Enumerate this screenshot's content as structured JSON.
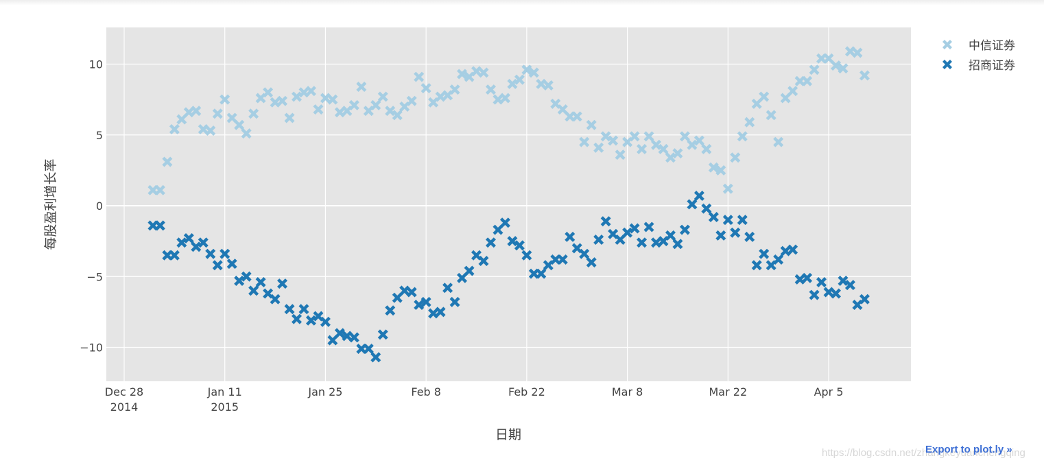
{
  "chart_data": {
    "type": "scatter",
    "title": "",
    "xlabel": "日期",
    "ylabel": "每股盈利增长率",
    "x_start": "2015-01-01",
    "x_step_days": 1,
    "x_tick_labels": [
      {
        "label": "Dec 28",
        "sub": "2014",
        "date": "2014-12-28"
      },
      {
        "label": "Jan 11",
        "sub": "2015",
        "date": "2015-01-11"
      },
      {
        "label": "Jan 25",
        "sub": "",
        "date": "2015-01-25"
      },
      {
        "label": "Feb 8",
        "sub": "",
        "date": "2015-02-08"
      },
      {
        "label": "Feb 22",
        "sub": "",
        "date": "2015-02-22"
      },
      {
        "label": "Mar 8",
        "sub": "",
        "date": "2015-03-08"
      },
      {
        "label": "Mar 22",
        "sub": "",
        "date": "2015-03-22"
      },
      {
        "label": "Apr 5",
        "sub": "",
        "date": "2015-04-05"
      }
    ],
    "y_ticks": [
      10,
      5,
      0,
      -5,
      -10
    ],
    "y_tick_labels": [
      "10",
      "5",
      "0",
      "−5",
      "−10"
    ],
    "ylim": [
      -12.4,
      12.6
    ],
    "xlim": [
      "2014-12-25",
      "2015-04-24"
    ],
    "grid": true,
    "legend_position": "top-right",
    "series": [
      {
        "name": "中信证券",
        "color": "#a6cee3",
        "marker": "x",
        "values": [
          1.1,
          1.1,
          3.1,
          5.4,
          6.1,
          6.6,
          6.7,
          5.4,
          5.3,
          6.5,
          7.5,
          6.2,
          5.7,
          5.1,
          6.5,
          7.6,
          8.0,
          7.3,
          7.4,
          6.2,
          7.7,
          8.0,
          8.1,
          6.8,
          7.6,
          7.5,
          6.6,
          6.7,
          7.1,
          8.4,
          6.7,
          7.1,
          7.7,
          6.7,
          6.4,
          7.0,
          7.4,
          9.1,
          8.3,
          7.3,
          7.7,
          7.8,
          8.2,
          9.3,
          9.1,
          9.5,
          9.4,
          8.2,
          7.5,
          7.6,
          8.6,
          8.9,
          9.6,
          9.4,
          8.6,
          8.5,
          7.2,
          6.8,
          6.3,
          6.3,
          4.5,
          5.7,
          4.1,
          4.9,
          4.6,
          3.6,
          4.5,
          4.9,
          4.0,
          4.9,
          4.3,
          4.0,
          3.4,
          3.7,
          4.9,
          4.3,
          4.6,
          4.0,
          2.7,
          2.5,
          1.2,
          3.4,
          4.9,
          5.9,
          7.2,
          7.7,
          6.4,
          4.5,
          7.6,
          8.1,
          8.8,
          8.8,
          9.6,
          10.4,
          10.4,
          9.9,
          9.7,
          10.9,
          10.8,
          9.2
        ]
      },
      {
        "name": "招商证券",
        "color": "#1f78b4",
        "marker": "x",
        "values": [
          -1.4,
          -1.4,
          -3.5,
          -3.5,
          -2.6,
          -2.3,
          -2.9,
          -2.6,
          -3.4,
          -4.2,
          -3.4,
          -4.1,
          -5.3,
          -5.0,
          -6.0,
          -5.4,
          -6.2,
          -6.6,
          -5.5,
          -7.3,
          -8.0,
          -7.3,
          -8.1,
          -7.8,
          -8.2,
          -9.5,
          -9.0,
          -9.2,
          -9.3,
          -10.1,
          -10.1,
          -10.7,
          -9.1,
          -7.4,
          -6.5,
          -6.0,
          -6.1,
          -7.0,
          -6.8,
          -7.6,
          -7.5,
          -5.8,
          -6.8,
          -5.1,
          -4.6,
          -3.5,
          -3.9,
          -2.6,
          -1.7,
          -1.2,
          -2.5,
          -2.8,
          -3.5,
          -4.8,
          -4.8,
          -4.2,
          -3.8,
          -3.8,
          -2.2,
          -3.0,
          -3.4,
          -4.0,
          -2.4,
          -1.1,
          -2.0,
          -2.4,
          -1.9,
          -1.6,
          -2.6,
          -1.5,
          -2.6,
          -2.5,
          -2.1,
          -2.7,
          -1.7,
          0.1,
          0.7,
          -0.2,
          -0.8,
          -2.1,
          -1.0,
          -1.9,
          -1.0,
          -2.2,
          -4.2,
          -3.4,
          -4.2,
          -3.8,
          -3.2,
          -3.1,
          -5.2,
          -5.1,
          -6.3,
          -5.4,
          -6.1,
          -6.2,
          -5.3,
          -5.6,
          -7.0,
          -6.6
        ]
      }
    ]
  },
  "legend": {
    "items": [
      {
        "label": "中信证券",
        "color": "#a6cee3"
      },
      {
        "label": "招商证券",
        "color": "#1f78b4"
      }
    ]
  },
  "footer": {
    "export_label": "Export to plot.ly »",
    "watermark": "https://blog.csdn.net/zhangkeyuanchengqing"
  },
  "style": {
    "plot_bg": "#e5e5e5",
    "grid_color": "#ffffff",
    "link_color": "#3d6fd5"
  }
}
